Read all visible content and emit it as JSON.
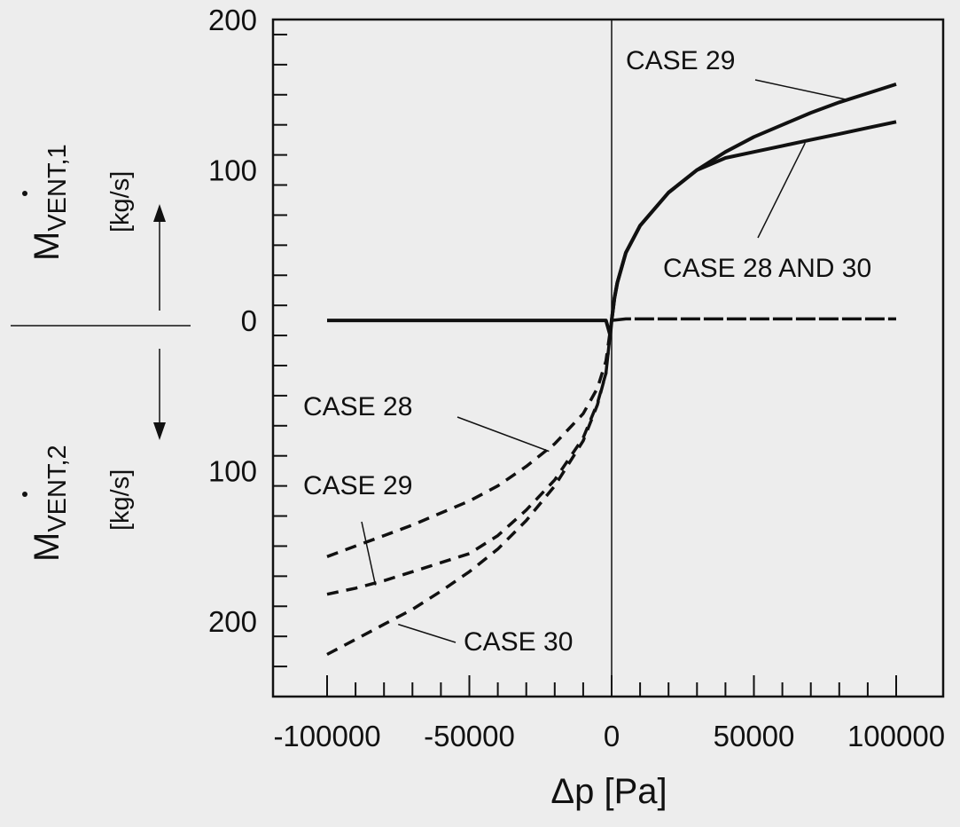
{
  "chart_data": {
    "type": "line",
    "xlabel": "Δp  [Pa]",
    "ylabel_upper": {
      "symbol": "M",
      "subscript": "VENT,1",
      "unit": "[kg/s]"
    },
    "ylabel_lower": {
      "symbol": "M",
      "subscript": "VENT,2",
      "unit": "[kg/s]"
    },
    "xlim": [
      -100000,
      100000
    ],
    "ylim": [
      -250,
      200
    ],
    "x_ticks": [
      -100000,
      -50000,
      0,
      50000,
      100000
    ],
    "x_tick_labels": [
      "-100000",
      "-50000",
      "0",
      "50000",
      "100000"
    ],
    "y_ticks": [
      200,
      100,
      0,
      -100,
      -200
    ],
    "y_tick_labels": [
      "200",
      "100",
      "0",
      "100",
      "200"
    ],
    "grid": false,
    "series": [
      {
        "name": "CASE 29",
        "role": "inflow",
        "style": "solid",
        "points": [
          [
            -100000,
            0
          ],
          [
            -2000,
            0
          ],
          [
            -500,
            -10
          ],
          [
            0,
            0
          ],
          [
            1000,
            15
          ],
          [
            2000,
            25
          ],
          [
            5000,
            45
          ],
          [
            10000,
            63
          ],
          [
            20000,
            85
          ],
          [
            30000,
            100
          ],
          [
            40000,
            112
          ],
          [
            50000,
            122
          ],
          [
            60000,
            130
          ],
          [
            70000,
            138
          ],
          [
            80000,
            145
          ],
          [
            90000,
            151
          ],
          [
            100000,
            157
          ]
        ]
      },
      {
        "name": "CASE 28 AND 30",
        "role": "inflow",
        "style": "solid",
        "points": [
          [
            0,
            0
          ],
          [
            1000,
            15
          ],
          [
            2000,
            25
          ],
          [
            5000,
            45
          ],
          [
            10000,
            63
          ],
          [
            20000,
            85
          ],
          [
            30000,
            100
          ],
          [
            40000,
            108
          ],
          [
            50000,
            112
          ],
          [
            60000,
            116
          ],
          [
            70000,
            120
          ],
          [
            80000,
            124
          ],
          [
            90000,
            128
          ],
          [
            100000,
            132
          ]
        ]
      },
      {
        "name": "",
        "role": "outflow-zero",
        "style": "dashed",
        "points": [
          [
            0,
            0
          ],
          [
            5000,
            1
          ],
          [
            100000,
            1
          ]
        ]
      },
      {
        "name": "CASE 28",
        "role": "outflow",
        "style": "dashed",
        "points": [
          [
            -100000,
            -157
          ],
          [
            -90000,
            -150
          ],
          [
            -80000,
            -143
          ],
          [
            -70000,
            -136
          ],
          [
            -60000,
            -128
          ],
          [
            -50000,
            -120
          ],
          [
            -40000,
            -110
          ],
          [
            -30000,
            -97
          ],
          [
            -20000,
            -82
          ],
          [
            -10000,
            -62
          ],
          [
            -5000,
            -45
          ],
          [
            -2000,
            -27
          ],
          [
            0,
            0
          ]
        ]
      },
      {
        "name": "CASE 29",
        "role": "outflow",
        "style": "dashed",
        "points": [
          [
            -100000,
            -182
          ],
          [
            -90000,
            -178
          ],
          [
            -80000,
            -173
          ],
          [
            -70000,
            -167
          ],
          [
            -60000,
            -161
          ],
          [
            -50000,
            -155
          ],
          [
            -40000,
            -143
          ],
          [
            -30000,
            -126
          ],
          [
            -20000,
            -106
          ],
          [
            -10000,
            -78
          ],
          [
            -5000,
            -55
          ],
          [
            -2000,
            -35
          ],
          [
            0,
            0
          ]
        ]
      },
      {
        "name": "CASE 30",
        "role": "outflow",
        "style": "dashed",
        "points": [
          [
            -100000,
            -222
          ],
          [
            -90000,
            -212
          ],
          [
            -80000,
            -202
          ],
          [
            -70000,
            -192
          ],
          [
            -60000,
            -180
          ],
          [
            -50000,
            -167
          ],
          [
            -40000,
            -152
          ],
          [
            -30000,
            -133
          ],
          [
            -20000,
            -110
          ],
          [
            -10000,
            -80
          ],
          [
            -5000,
            -56
          ],
          [
            -2000,
            -35
          ],
          [
            0,
            0
          ]
        ]
      }
    ],
    "annotations": [
      {
        "text": "CASE 29",
        "target": [
          82000,
          147
        ]
      },
      {
        "text": "CASE 28 AND 30",
        "target": [
          68000,
          118
        ]
      },
      {
        "text": "CASE 28",
        "target": [
          -22000,
          -87
        ]
      },
      {
        "text": "CASE 29",
        "target": [
          -83000,
          -176
        ]
      },
      {
        "text": "CASE 30",
        "target": [
          -75000,
          -202
        ]
      }
    ]
  }
}
